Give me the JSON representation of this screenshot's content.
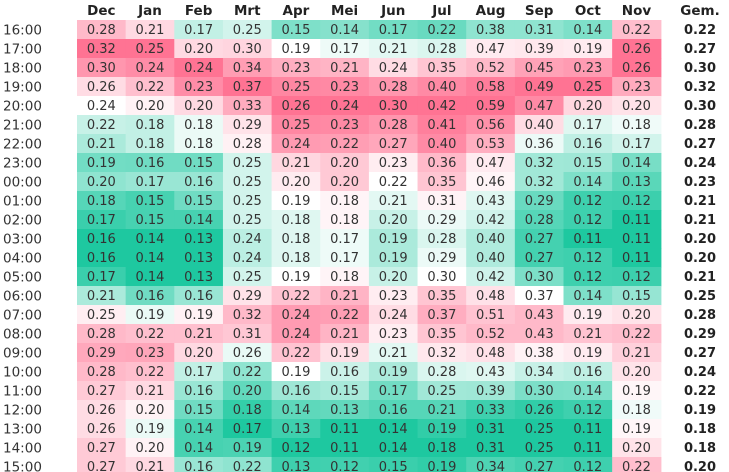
{
  "chart_data": {
    "type": "heatmap",
    "columns": [
      "Dec",
      "Jan",
      "Feb",
      "Mrt",
      "Apr",
      "Mei",
      "Jun",
      "Jul",
      "Aug",
      "Sep",
      "Oct",
      "Nov"
    ],
    "avg_label": "Gem.",
    "rows": [
      "16:00",
      "17:00",
      "18:00",
      "19:00",
      "20:00",
      "21:00",
      "22:00",
      "23:00",
      "00:00",
      "01:00",
      "02:00",
      "03:00",
      "04:00",
      "05:00",
      "06:00",
      "07:00",
      "08:00",
      "09:00",
      "10:00",
      "11:00",
      "12:00",
      "13:00",
      "14:00",
      "15:00"
    ],
    "values": [
      [
        "0.28",
        "0.21",
        "0.17",
        "0.25",
        "0.15",
        "0.14",
        "0.17",
        "0.22",
        "0.38",
        "0.31",
        "0.14",
        "0.22"
      ],
      [
        "0.32",
        "0.25",
        "0.20",
        "0.30",
        "0.19",
        "0.17",
        "0.21",
        "0.28",
        "0.47",
        "0.39",
        "0.19",
        "0.26"
      ],
      [
        "0.30",
        "0.24",
        "0.24",
        "0.34",
        "0.23",
        "0.21",
        "0.24",
        "0.35",
        "0.52",
        "0.45",
        "0.23",
        "0.26"
      ],
      [
        "0.26",
        "0.22",
        "0.23",
        "0.37",
        "0.25",
        "0.23",
        "0.28",
        "0.40",
        "0.58",
        "0.49",
        "0.25",
        "0.23"
      ],
      [
        "0.24",
        "0.20",
        "0.20",
        "0.33",
        "0.26",
        "0.24",
        "0.30",
        "0.42",
        "0.59",
        "0.47",
        "0.20",
        "0.20"
      ],
      [
        "0.22",
        "0.18",
        "0.18",
        "0.29",
        "0.25",
        "0.23",
        "0.28",
        "0.41",
        "0.56",
        "0.40",
        "0.17",
        "0.18"
      ],
      [
        "0.21",
        "0.18",
        "0.18",
        "0.28",
        "0.24",
        "0.22",
        "0.27",
        "0.40",
        "0.53",
        "0.36",
        "0.16",
        "0.17"
      ],
      [
        "0.19",
        "0.16",
        "0.15",
        "0.25",
        "0.21",
        "0.20",
        "0.23",
        "0.36",
        "0.47",
        "0.32",
        "0.15",
        "0.14"
      ],
      [
        "0.20",
        "0.17",
        "0.16",
        "0.25",
        "0.20",
        "0.20",
        "0.22",
        "0.35",
        "0.46",
        "0.32",
        "0.14",
        "0.13"
      ],
      [
        "0.18",
        "0.15",
        "0.15",
        "0.25",
        "0.19",
        "0.18",
        "0.21",
        "0.31",
        "0.43",
        "0.29",
        "0.12",
        "0.12"
      ],
      [
        "0.17",
        "0.15",
        "0.14",
        "0.25",
        "0.18",
        "0.18",
        "0.20",
        "0.29",
        "0.42",
        "0.28",
        "0.12",
        "0.11"
      ],
      [
        "0.16",
        "0.14",
        "0.13",
        "0.24",
        "0.18",
        "0.17",
        "0.19",
        "0.28",
        "0.40",
        "0.27",
        "0.11",
        "0.11"
      ],
      [
        "0.16",
        "0.14",
        "0.13",
        "0.24",
        "0.18",
        "0.17",
        "0.19",
        "0.29",
        "0.40",
        "0.27",
        "0.12",
        "0.11"
      ],
      [
        "0.17",
        "0.14",
        "0.13",
        "0.25",
        "0.19",
        "0.18",
        "0.20",
        "0.30",
        "0.42",
        "0.30",
        "0.12",
        "0.12"
      ],
      [
        "0.21",
        "0.16",
        "0.16",
        "0.29",
        "0.22",
        "0.21",
        "0.23",
        "0.35",
        "0.48",
        "0.37",
        "0.14",
        "0.15"
      ],
      [
        "0.25",
        "0.19",
        "0.19",
        "0.32",
        "0.24",
        "0.22",
        "0.24",
        "0.37",
        "0.51",
        "0.43",
        "0.19",
        "0.20"
      ],
      [
        "0.28",
        "0.22",
        "0.21",
        "0.31",
        "0.24",
        "0.21",
        "0.23",
        "0.35",
        "0.52",
        "0.43",
        "0.21",
        "0.22"
      ],
      [
        "0.29",
        "0.23",
        "0.20",
        "0.26",
        "0.22",
        "0.19",
        "0.21",
        "0.32",
        "0.48",
        "0.38",
        "0.19",
        "0.21"
      ],
      [
        "0.28",
        "0.22",
        "0.17",
        "0.22",
        "0.19",
        "0.16",
        "0.19",
        "0.28",
        "0.43",
        "0.34",
        "0.16",
        "0.20"
      ],
      [
        "0.27",
        "0.21",
        "0.16",
        "0.20",
        "0.16",
        "0.15",
        "0.17",
        "0.25",
        "0.39",
        "0.30",
        "0.14",
        "0.19"
      ],
      [
        "0.26",
        "0.20",
        "0.15",
        "0.18",
        "0.14",
        "0.13",
        "0.16",
        "0.21",
        "0.33",
        "0.26",
        "0.12",
        "0.18"
      ],
      [
        "0.26",
        "0.19",
        "0.14",
        "0.17",
        "0.13",
        "0.11",
        "0.14",
        "0.19",
        "0.31",
        "0.25",
        "0.11",
        "0.19"
      ],
      [
        "0.27",
        "0.20",
        "0.14",
        "0.19",
        "0.12",
        "0.11",
        "0.14",
        "0.18",
        "0.31",
        "0.25",
        "0.11",
        "0.20"
      ],
      [
        "0.27",
        "0.21",
        "0.16",
        "0.22",
        "0.13",
        "0.12",
        "0.15",
        "0.19",
        "0.34",
        "0.27",
        "0.12",
        "0.22"
      ]
    ],
    "averages": [
      "0.22",
      "0.27",
      "0.30",
      "0.32",
      "0.30",
      "0.28",
      "0.27",
      "0.24",
      "0.23",
      "0.21",
      "0.21",
      "0.20",
      "0.20",
      "0.21",
      "0.25",
      "0.28",
      "0.29",
      "0.27",
      "0.24",
      "0.22",
      "0.19",
      "0.18",
      "0.18",
      "0.20"
    ],
    "color_scale": {
      "normalization": "per-column (each month's min to max)",
      "low_color": "#1ec8a0",
      "mid_color": "#ffffff",
      "high_color": "#ff7393"
    }
  }
}
